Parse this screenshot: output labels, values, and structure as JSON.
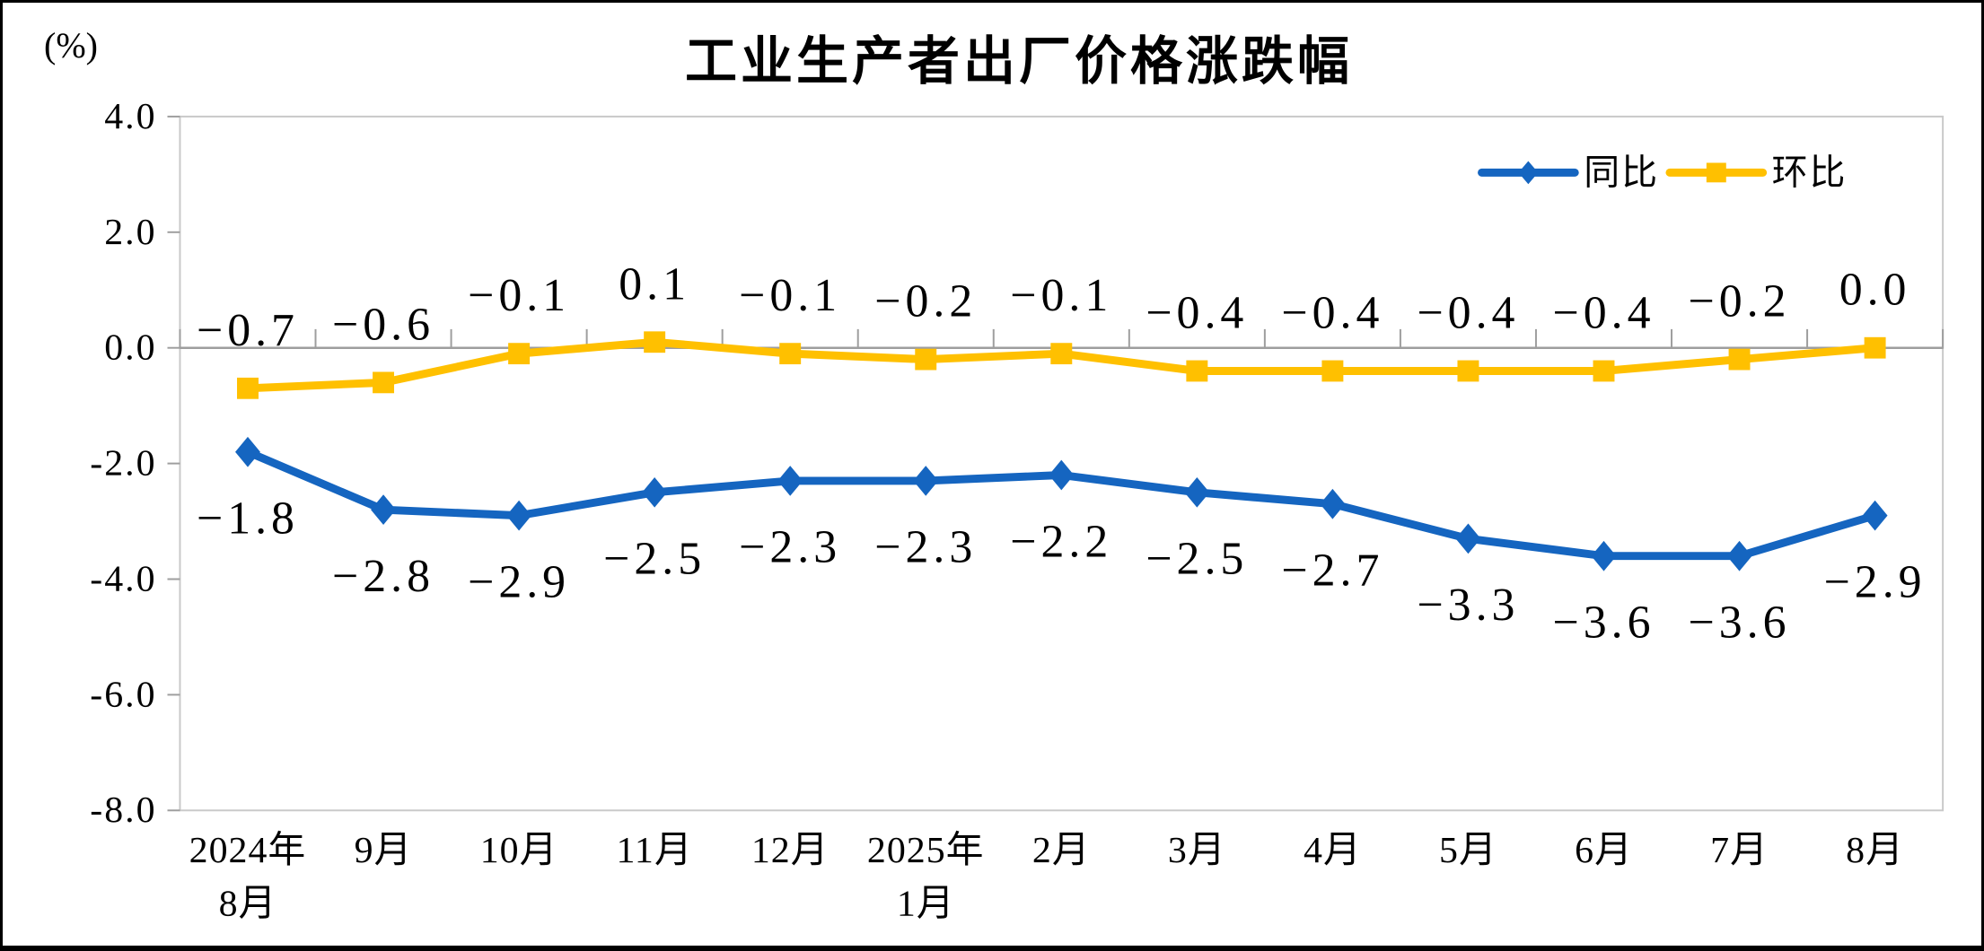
{
  "chart_data": {
    "type": "line",
    "title": "工业生产者出厂价格涨跌幅",
    "y_unit_label": "(%)",
    "categories": [
      "2024年\n8月",
      "9月",
      "10月",
      "11月",
      "12月",
      "2025年\n1月",
      "2月",
      "3月",
      "4月",
      "5月",
      "6月",
      "7月",
      "8月"
    ],
    "series": [
      {
        "key": "yoy",
        "name": "同比",
        "color": "#1565C0",
        "marker": "diamond",
        "label_position": "below",
        "values": [
          -1.8,
          -2.8,
          -2.9,
          -2.5,
          -2.3,
          -2.3,
          -2.2,
          -2.5,
          -2.7,
          -3.3,
          -3.6,
          -3.6,
          -2.9
        ]
      },
      {
        "key": "mom",
        "name": "环比",
        "color": "#FFC000",
        "marker": "square",
        "label_position": "above",
        "values": [
          -0.7,
          -0.6,
          -0.1,
          0.1,
          -0.1,
          -0.2,
          -0.1,
          -0.4,
          -0.4,
          -0.4,
          -0.4,
          -0.2,
          0.0
        ]
      }
    ],
    "ylim": [
      -8.0,
      4.0
    ],
    "y_ticks": [
      "4.0",
      "2.0",
      "0.0",
      "-2.0",
      "-4.0",
      "-6.0",
      "-8.0"
    ],
    "grid": false,
    "legend_position": "top-right",
    "colors": {
      "plot_border": "#C9C9C9",
      "axis_line": "#9E9E9E",
      "tick": "#9E9E9E",
      "text": "#000000"
    }
  }
}
